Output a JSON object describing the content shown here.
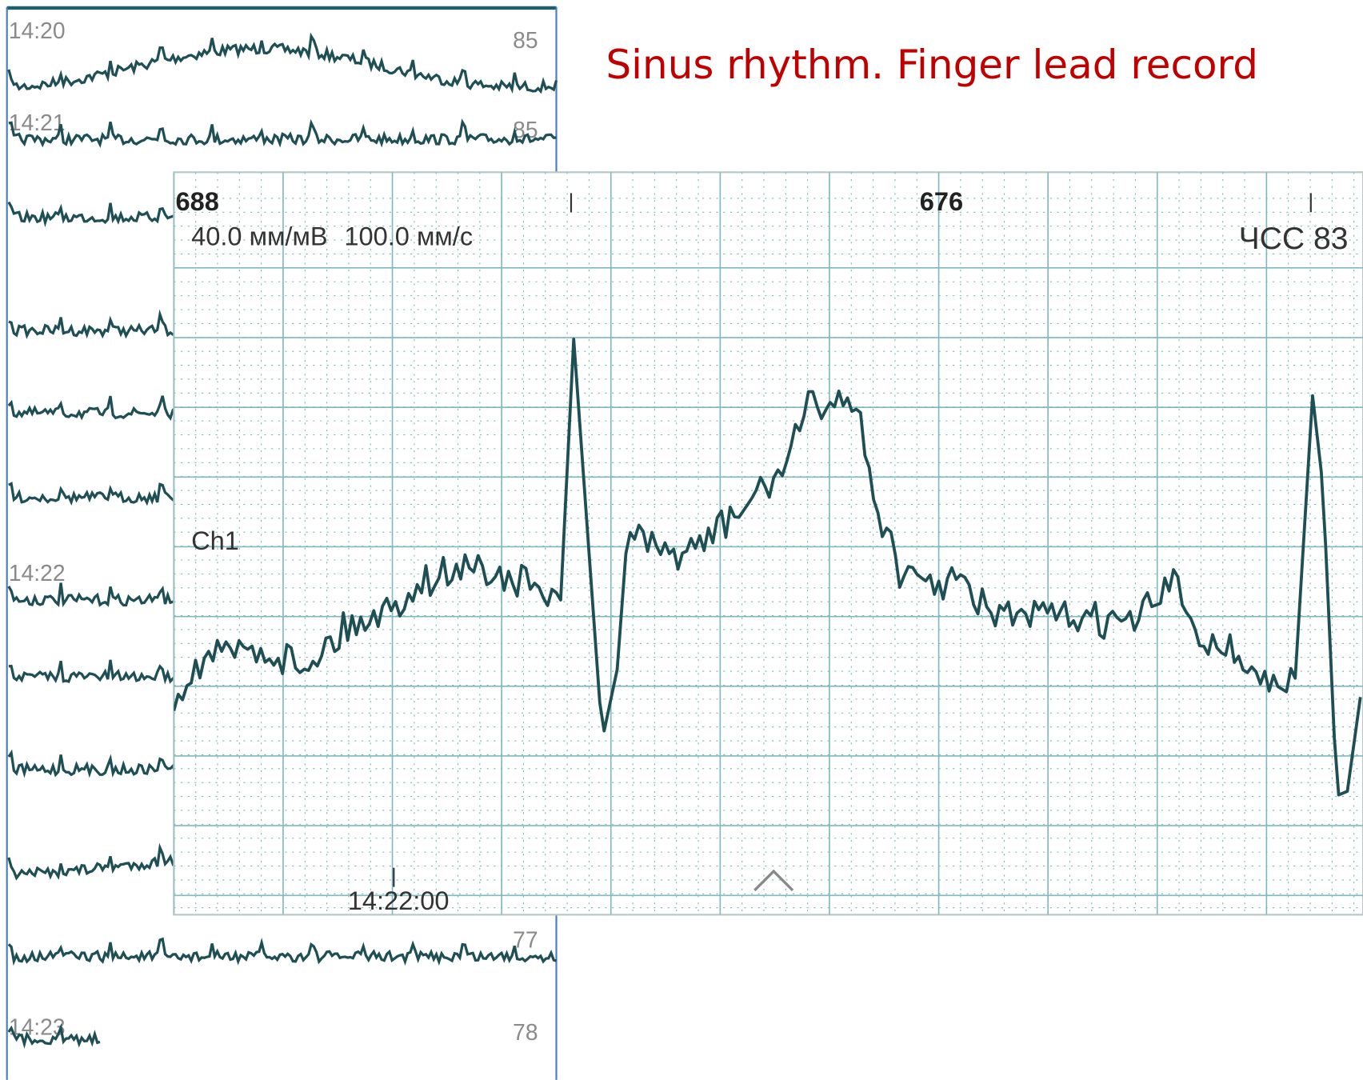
{
  "title": "Sinus rhythm. Finger lead record",
  "strip": {
    "labels": [
      {
        "time": "14:20",
        "rate": "85"
      },
      {
        "time": "14:21",
        "rate": "85"
      },
      {
        "time": "14:22"
      },
      {
        "rate": "77"
      },
      {
        "time": "14:23",
        "rate": "78"
      }
    ]
  },
  "panel": {
    "interval_left": "688",
    "interval_right": "676",
    "gain": "40.0 мм/мВ",
    "speed": "100.0 мм/с",
    "heart_rate": "ЧСС 83",
    "channel": "Ch1",
    "timestamp": "14:22:00"
  }
}
